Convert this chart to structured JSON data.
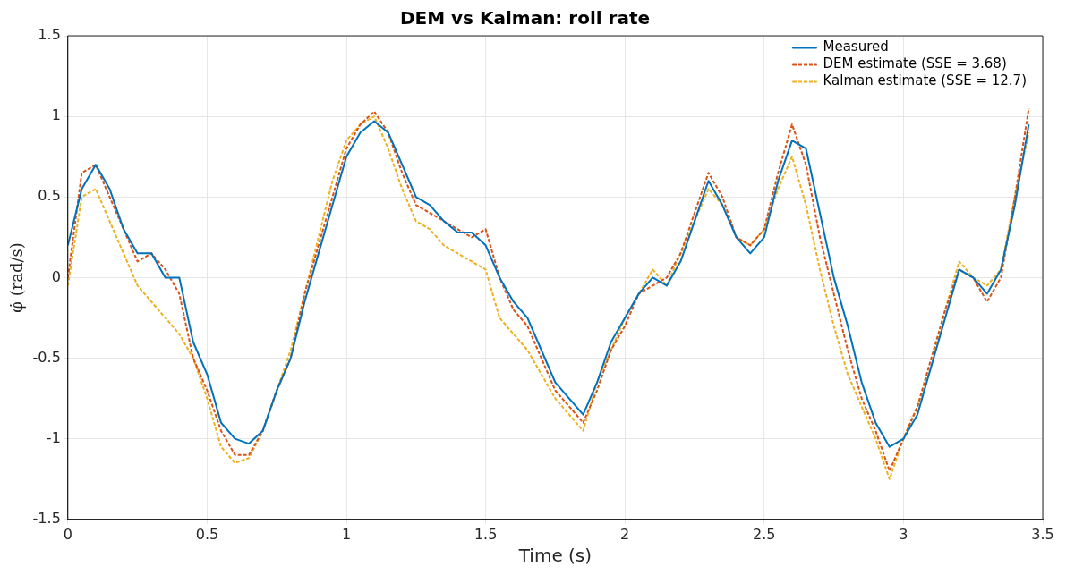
{
  "chart_data": {
    "type": "line",
    "title": "DEM vs Kalman: roll rate",
    "xlabel": "Time (s)",
    "ylabel": "φ̇ (rad/s)",
    "x": [
      0,
      0.05,
      0.1,
      0.15,
      0.2,
      0.25,
      0.3,
      0.35,
      0.4,
      0.45,
      0.5,
      0.55,
      0.6,
      0.65,
      0.7,
      0.75,
      0.8,
      0.85,
      0.9,
      0.95,
      1,
      1.05,
      1.1,
      1.15,
      1.2,
      1.25,
      1.3,
      1.35,
      1.4,
      1.45,
      1.5,
      1.55,
      1.6,
      1.65,
      1.7,
      1.75,
      1.8,
      1.85,
      1.9,
      1.95,
      2,
      2.05,
      2.1,
      2.15,
      2.2,
      2.25,
      2.3,
      2.35,
      2.4,
      2.45,
      2.5,
      2.55,
      2.6,
      2.65,
      2.7,
      2.75,
      2.8,
      2.85,
      2.9,
      2.95,
      3,
      3.05,
      3.1,
      3.15,
      3.2,
      3.25,
      3.3,
      3.35,
      3.4,
      3.45
    ],
    "series": [
      {
        "name": "Measured",
        "color": "#0072bd",
        "line_style": "solid",
        "values": [
          0.2,
          0.55,
          0.7,
          0.55,
          0.3,
          0.15,
          0.15,
          0.0,
          0.0,
          -0.4,
          -0.6,
          -0.9,
          -1.0,
          -1.03,
          -0.95,
          -0.7,
          -0.5,
          -0.15,
          0.15,
          0.45,
          0.75,
          0.9,
          0.97,
          0.9,
          0.7,
          0.5,
          0.45,
          0.35,
          0.28,
          0.28,
          0.2,
          0.0,
          -0.15,
          -0.25,
          -0.45,
          -0.65,
          -0.75,
          -0.85,
          -0.65,
          -0.4,
          -0.25,
          -0.1,
          0.0,
          -0.05,
          0.1,
          0.35,
          0.6,
          0.45,
          0.25,
          0.15,
          0.25,
          0.6,
          0.85,
          0.8,
          0.4,
          0.0,
          -0.3,
          -0.65,
          -0.9,
          -1.05,
          -1.0,
          -0.85,
          -0.55,
          -0.25,
          0.05,
          0.0,
          -0.1,
          0.05,
          0.45,
          0.95
        ]
      },
      {
        "name": "DEM estimate (SSE = 3.68)",
        "color": "#d95319",
        "line_style": "dashed",
        "values": [
          0.0,
          0.65,
          0.7,
          0.5,
          0.3,
          0.1,
          0.15,
          0.05,
          -0.1,
          -0.5,
          -0.7,
          -0.95,
          -1.1,
          -1.1,
          -0.95,
          -0.7,
          -0.5,
          -0.1,
          0.2,
          0.5,
          0.8,
          0.95,
          1.03,
          0.9,
          0.65,
          0.45,
          0.4,
          0.35,
          0.3,
          0.25,
          0.3,
          0.0,
          -0.2,
          -0.3,
          -0.5,
          -0.7,
          -0.8,
          -0.9,
          -0.7,
          -0.45,
          -0.3,
          -0.1,
          -0.05,
          0.0,
          0.15,
          0.4,
          0.65,
          0.5,
          0.25,
          0.2,
          0.3,
          0.65,
          0.95,
          0.7,
          0.25,
          -0.1,
          -0.45,
          -0.75,
          -0.95,
          -1.2,
          -1.0,
          -0.8,
          -0.5,
          -0.2,
          0.05,
          0.0,
          -0.15,
          0.0,
          0.5,
          1.05
        ]
      },
      {
        "name": "Kalman estimate (SSE = 12.7)",
        "color": "#edb120",
        "line_style": "dashed",
        "values": [
          -0.05,
          0.5,
          0.55,
          0.35,
          0.15,
          -0.05,
          -0.15,
          -0.25,
          -0.35,
          -0.5,
          -0.75,
          -1.05,
          -1.15,
          -1.12,
          -0.95,
          -0.7,
          -0.45,
          -0.1,
          0.25,
          0.6,
          0.85,
          0.95,
          1.0,
          0.8,
          0.55,
          0.35,
          0.3,
          0.2,
          0.15,
          0.1,
          0.05,
          -0.25,
          -0.35,
          -0.45,
          -0.6,
          -0.75,
          -0.85,
          -0.95,
          -0.65,
          -0.45,
          -0.25,
          -0.1,
          0.05,
          -0.05,
          0.15,
          0.35,
          0.55,
          0.45,
          0.25,
          0.2,
          0.3,
          0.55,
          0.75,
          0.45,
          0.05,
          -0.3,
          -0.6,
          -0.8,
          -1.0,
          -1.25,
          -1.0,
          -0.8,
          -0.55,
          -0.2,
          0.1,
          0.0,
          -0.05,
          0.05,
          0.5,
          0.9
        ]
      }
    ],
    "xlim": [
      0,
      3.5
    ],
    "xticks": [
      0,
      0.5,
      1,
      1.5,
      2,
      2.5,
      3,
      3.5
    ],
    "ylim": [
      -1.5,
      1.5
    ],
    "yticks": [
      -1.5,
      -1,
      -0.5,
      0,
      0.5,
      1,
      1.5
    ],
    "grid": true,
    "legend": "top right",
    "marker": "none"
  }
}
